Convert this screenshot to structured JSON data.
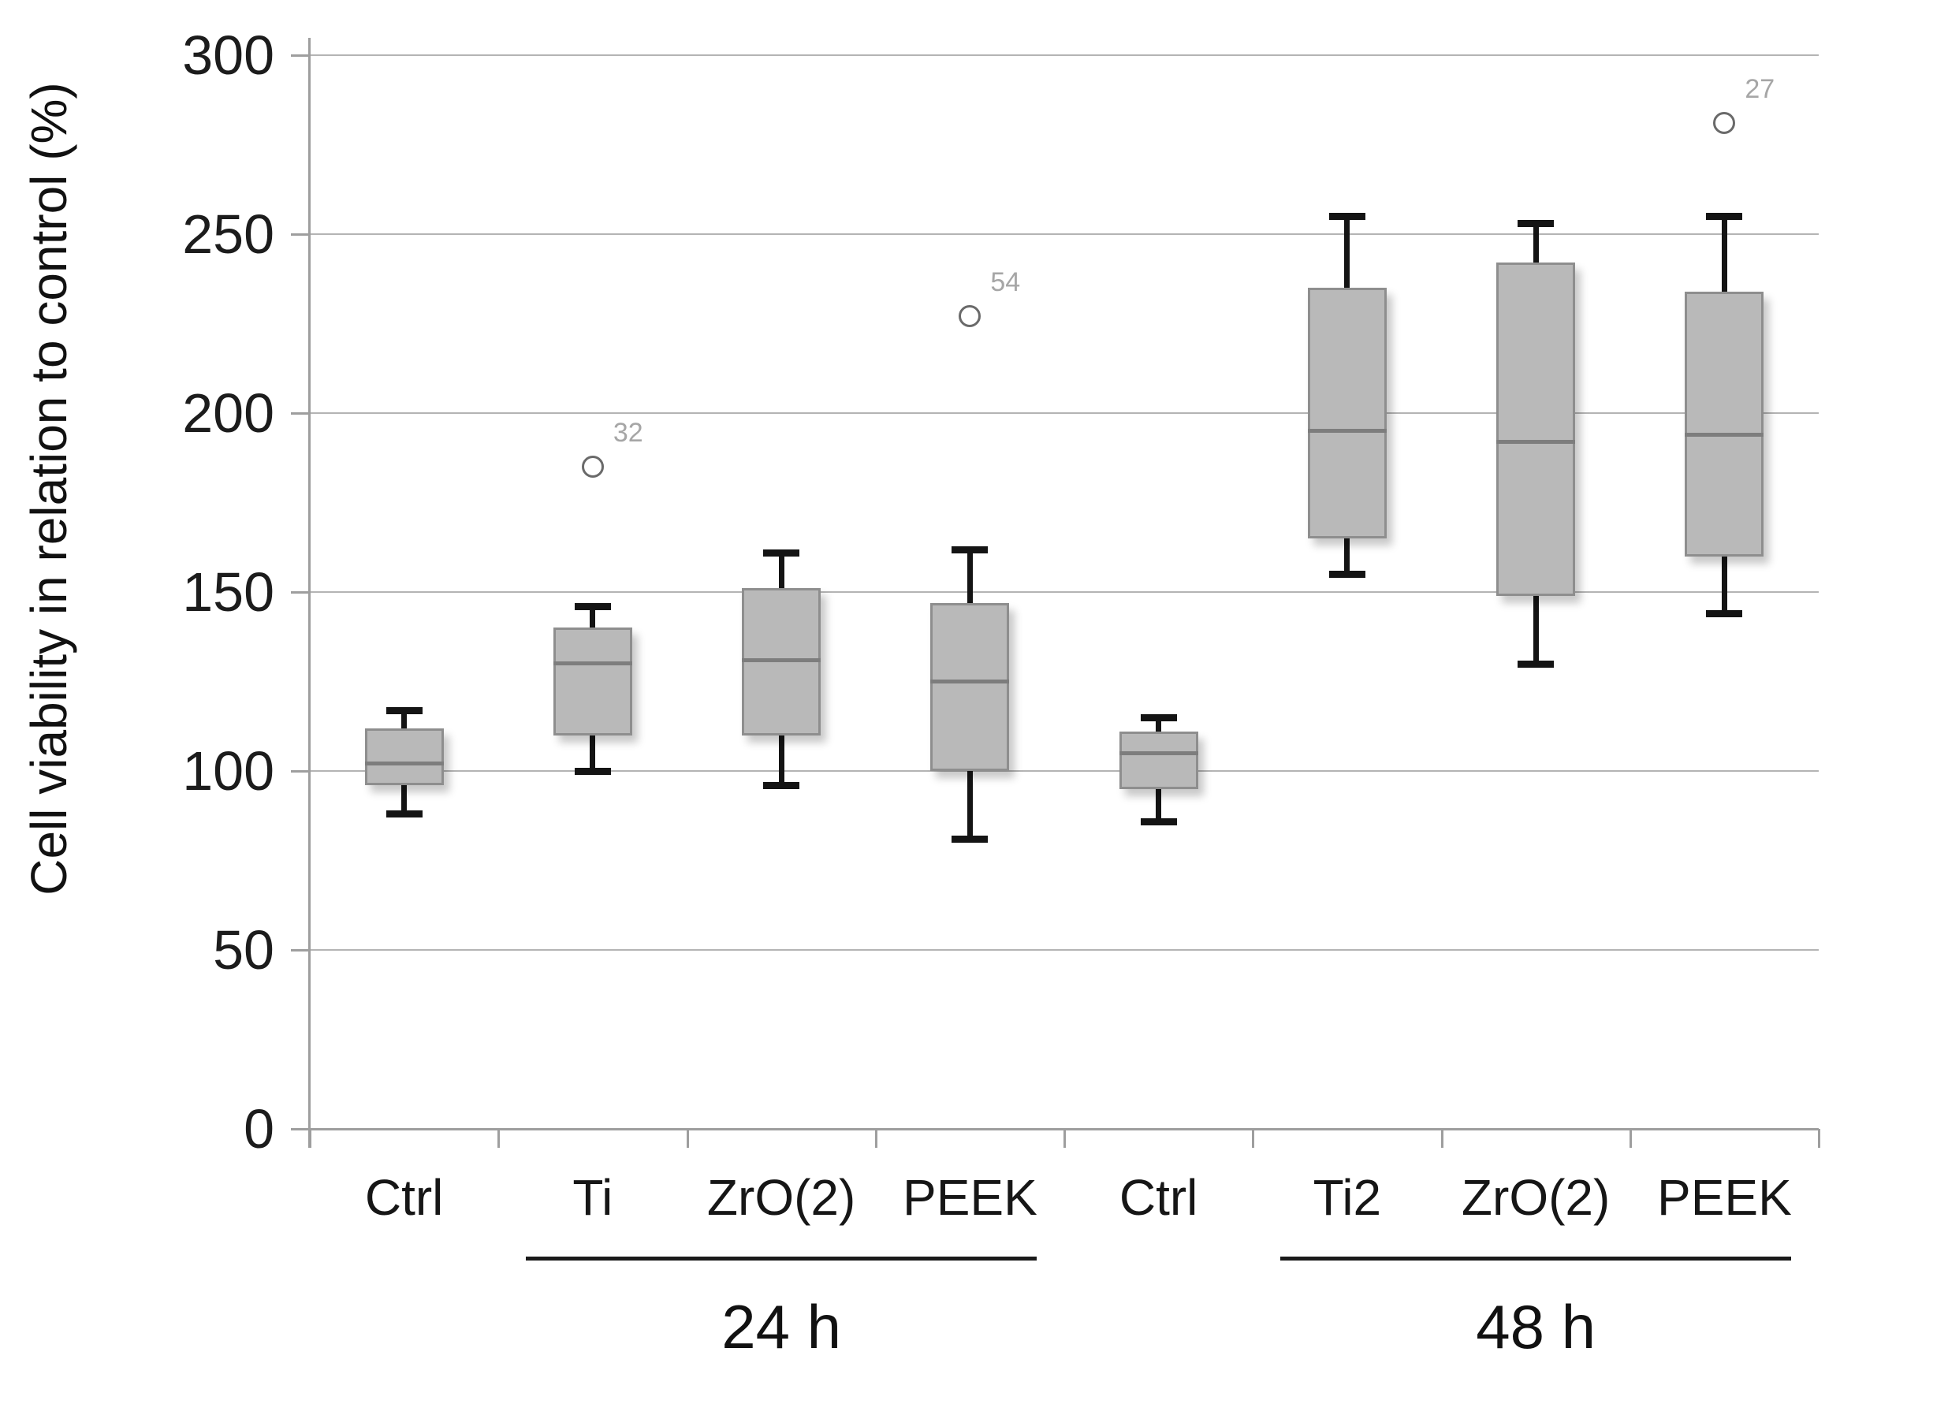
{
  "page": {
    "background_color": "#ffffff",
    "text_color": "#161616"
  },
  "chart_data": {
    "type": "box",
    "title": "",
    "xlabel": "",
    "ylabel": "Cell viability in relation to control (%)",
    "ylim": [
      0,
      300
    ],
    "yticks": [
      "0",
      "50",
      "100",
      "150",
      "200",
      "250",
      "300"
    ],
    "ytick_values": [
      0,
      50,
      100,
      150,
      200,
      250,
      300
    ],
    "grid": true,
    "legend": "none",
    "categories": [
      "Ctrl",
      "Ti",
      "ZrO(2)",
      "PEEK",
      "Ctrl",
      "Ti2",
      "ZrO(2)",
      "PEEK"
    ],
    "groups": [
      {
        "label": "24 h",
        "from_index": 1,
        "to_index": 3
      },
      {
        "label": "48 h",
        "from_index": 5,
        "to_index": 7
      }
    ],
    "series": [
      {
        "category": "Ctrl",
        "group": "24 h",
        "whisker_low": 88,
        "q1": 96,
        "median": 102,
        "q3": 112,
        "whisker_high": 117,
        "outliers": []
      },
      {
        "category": "Ti",
        "group": "24 h",
        "whisker_low": 100,
        "q1": 110,
        "median": 130,
        "q3": 140,
        "whisker_high": 146,
        "outliers": [
          {
            "value": 185,
            "label": "32"
          }
        ]
      },
      {
        "category": "ZrO(2)",
        "group": "24 h",
        "whisker_low": 96,
        "q1": 110,
        "median": 131,
        "q3": 151,
        "whisker_high": 161,
        "outliers": []
      },
      {
        "category": "PEEK",
        "group": "24 h",
        "whisker_low": 81,
        "q1": 100,
        "median": 125,
        "q3": 147,
        "whisker_high": 162,
        "outliers": [
          {
            "value": 227,
            "label": "54"
          }
        ]
      },
      {
        "category": "Ctrl",
        "group": "48 h",
        "whisker_low": 86,
        "q1": 95,
        "median": 105,
        "q3": 111,
        "whisker_high": 115,
        "outliers": []
      },
      {
        "category": "Ti2",
        "group": "48 h",
        "whisker_low": 155,
        "q1": 165,
        "median": 195,
        "q3": 235,
        "whisker_high": 255,
        "outliers": []
      },
      {
        "category": "ZrO(2)",
        "group": "48 h",
        "whisker_low": 130,
        "q1": 149,
        "median": 192,
        "q3": 242,
        "whisker_high": 253,
        "outliers": []
      },
      {
        "category": "PEEK",
        "group": "48 h",
        "whisker_low": 144,
        "q1": 160,
        "median": 194,
        "q3": 234,
        "whisker_high": 255,
        "outliers": [
          {
            "value": 281,
            "label": "27"
          }
        ]
      }
    ],
    "colors": {
      "box_fill": "#b9b9b9",
      "box_border": "#8e8e8e",
      "median": "#7d7d7d",
      "whisker": "#141414",
      "gridline": "#b4b4b4",
      "axis": "#9e9e9e",
      "outlier_stroke": "#6a6a6a",
      "outlier_label": "#a6a6a6"
    }
  }
}
